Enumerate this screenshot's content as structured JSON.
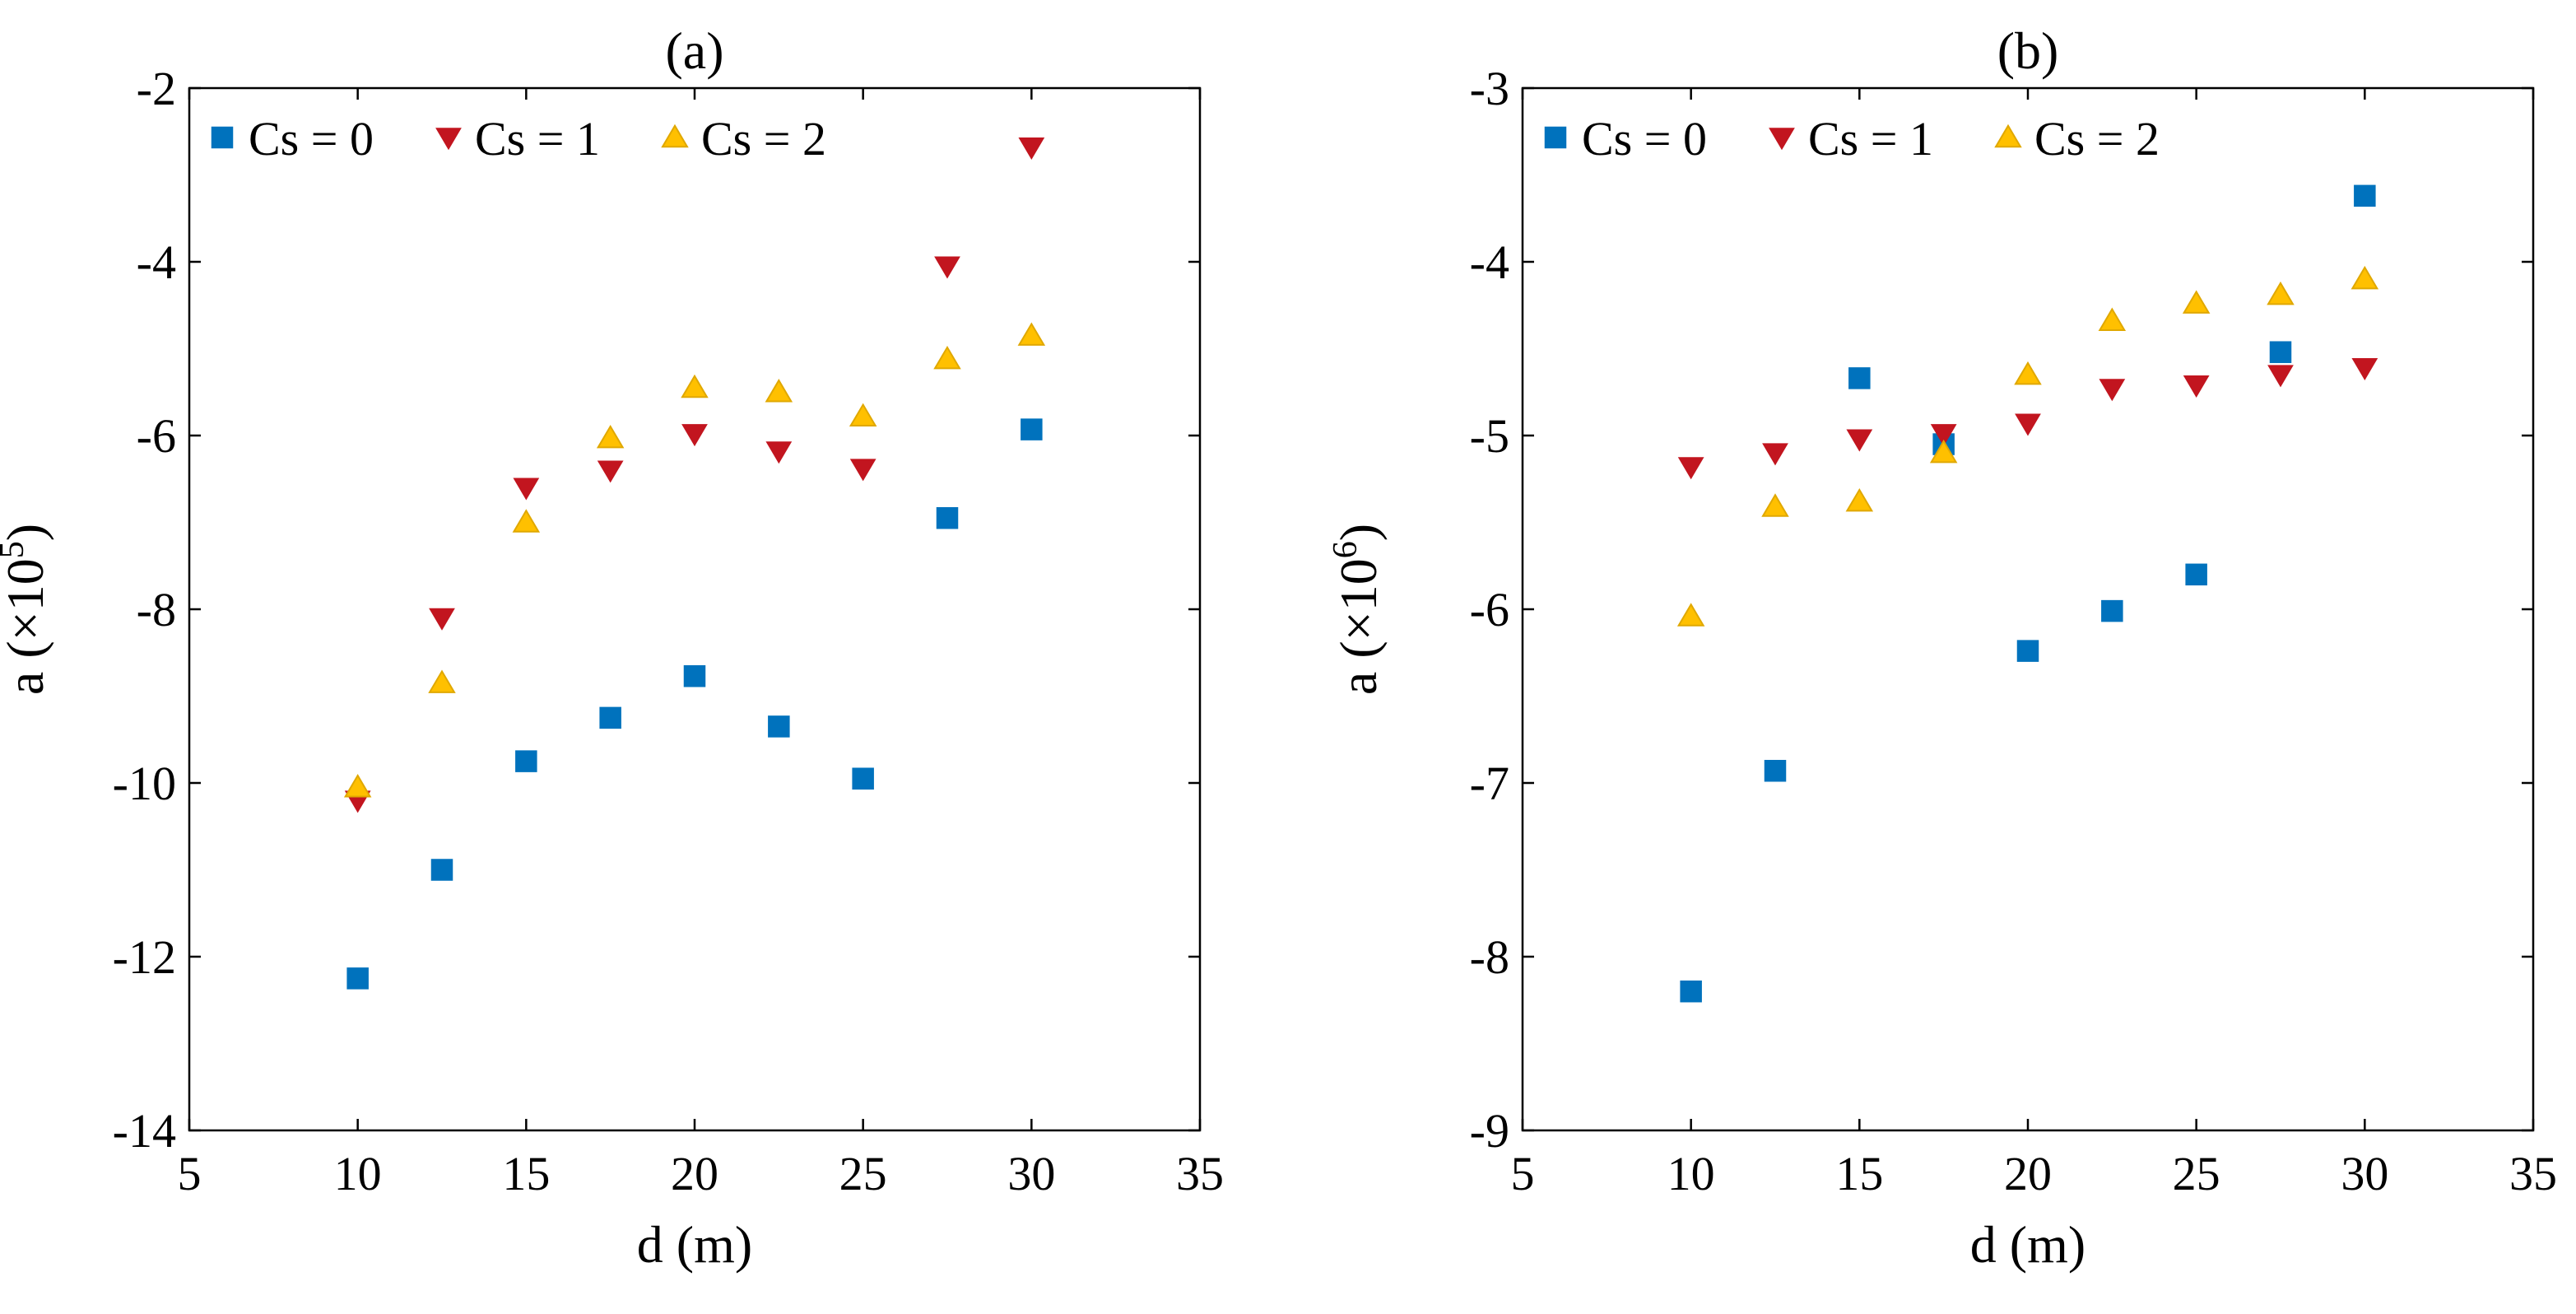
{
  "chart_data": [
    {
      "id": "a",
      "type": "scatter",
      "title": "(a)",
      "xlabel": "d (m)",
      "ylabel_base": "a (×10",
      "ylabel_exp": "5",
      "ylabel_close": ")",
      "xlim": [
        5,
        35
      ],
      "ylim": [
        -14,
        -2
      ],
      "xticks": [
        5,
        10,
        15,
        20,
        25,
        30,
        35
      ],
      "yticks": [
        -14,
        -12,
        -10,
        -8,
        -6,
        -4,
        -2
      ],
      "xtick_labels": [
        "5",
        "10",
        "15",
        "20",
        "25",
        "30",
        "35"
      ],
      "ytick_labels": [
        "-14",
        "-12",
        "-10",
        "-8",
        "-6",
        "-4",
        "-2"
      ],
      "grid": false,
      "legend": "top-left",
      "x": [
        10,
        12.5,
        15,
        17.5,
        20,
        22.5,
        25,
        27.5,
        30
      ],
      "series": [
        {
          "name": "Cs = 0",
          "marker": "square",
          "color": "#0072BD",
          "values": [
            -12.25,
            -11.0,
            -9.75,
            -9.25,
            -8.77,
            -9.35,
            -9.95,
            -6.95,
            -5.93
          ]
        },
        {
          "name": "Cs = 1",
          "marker": "triangle-down",
          "color": "#C2151F",
          "values": [
            -10.2,
            -8.1,
            -6.6,
            -6.4,
            -5.98,
            -6.18,
            -6.38,
            -4.05,
            -2.68
          ]
        },
        {
          "name": "Cs = 2",
          "marker": "triangle-up",
          "color": "#FFC000",
          "values": [
            -10.05,
            -8.85,
            -7.0,
            -6.03,
            -5.45,
            -5.5,
            -5.78,
            -5.12,
            -4.85
          ]
        }
      ]
    },
    {
      "id": "b",
      "type": "scatter",
      "title": "(b)",
      "xlabel": "d (m)",
      "ylabel_base": "a (×10",
      "ylabel_exp": "6",
      "ylabel_close": ")",
      "xlim": [
        5,
        35
      ],
      "ylim": [
        -9,
        -3
      ],
      "xticks": [
        5,
        10,
        15,
        20,
        25,
        30,
        35
      ],
      "yticks": [
        -9,
        -8,
        -7,
        -6,
        -5,
        -4,
        -3
      ],
      "xtick_labels": [
        "5",
        "10",
        "15",
        "20",
        "25",
        "30",
        "35"
      ],
      "ytick_labels": [
        "-9",
        "-8",
        "-7",
        "-6",
        "-5",
        "-4",
        "-3"
      ],
      "grid": false,
      "legend": "top-left",
      "x": [
        10,
        12.5,
        15,
        17.5,
        20,
        22.5,
        25,
        27.5,
        30
      ],
      "series": [
        {
          "name": "Cs = 0",
          "marker": "square",
          "color": "#0072BD",
          "values": [
            -8.2,
            -6.93,
            -4.67,
            -5.05,
            -6.24,
            -6.01,
            -5.8,
            -4.52,
            -3.62
          ]
        },
        {
          "name": "Cs = 1",
          "marker": "triangle-down",
          "color": "#C2151F",
          "values": [
            -5.18,
            -5.1,
            -5.02,
            -4.99,
            -4.93,
            -4.73,
            -4.71,
            -4.65,
            -4.61
          ]
        },
        {
          "name": "Cs = 2",
          "marker": "triangle-up",
          "color": "#FFC000",
          "values": [
            -6.04,
            -5.41,
            -5.38,
            -5.1,
            -4.65,
            -4.34,
            -4.24,
            -4.19,
            -4.1
          ]
        }
      ]
    }
  ]
}
